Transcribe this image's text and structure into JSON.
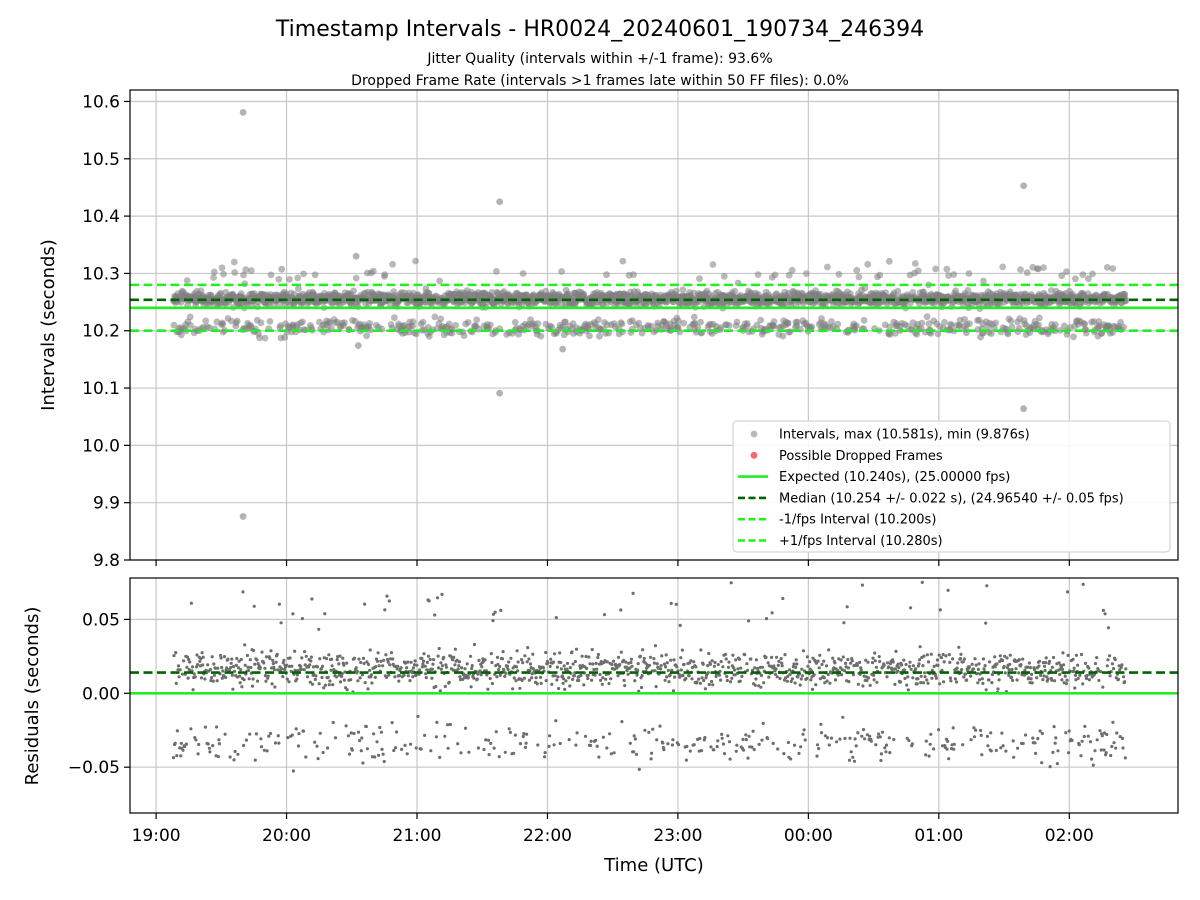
{
  "chart_data": [
    {
      "type": "scatter",
      "title": "Timestamp Intervals - HR0024_20240601_190734_246394",
      "subtitle_lines": [
        "Jitter Quality (intervals within +/-1 frame): 93.6%",
        "Dropped Frame Rate (intervals >1 frames late within 50 FF files): 0.0%"
      ],
      "xlabel": "",
      "ylabel": "Intervals (seconds)",
      "ylim": [
        9.8,
        10.62
      ],
      "xlim": [
        "2024-06-01T18:48",
        "2024-06-02T02:50"
      ],
      "yticks": [
        "9.8",
        "9.9",
        "10.0",
        "10.1",
        "10.2",
        "10.3",
        "10.4",
        "10.5",
        "10.6"
      ],
      "grid": true,
      "legend_position": "lower right",
      "series": [
        {
          "name": "Intervals, max (10.581s), min (9.876s)",
          "color": "#808080",
          "marker": "circle",
          "max": 10.581,
          "min": 9.876,
          "median": 10.254,
          "time_range": [
            "2024-06-01T19:08",
            "2024-06-02T02:26"
          ],
          "point_count_approx": 2570,
          "bands": [
            {
              "center": 10.256,
              "spread": 0.006,
              "fraction": 0.75
            },
            {
              "center": 10.206,
              "spread": 0.007,
              "fraction": 0.22
            },
            {
              "center": 10.3,
              "spread": 0.009,
              "fraction": 0.03
            }
          ],
          "notable_points": [
            {
              "time": "2024-06-01T19:40",
              "value": 10.581
            },
            {
              "time": "2024-06-01T19:40",
              "value": 9.876
            },
            {
              "time": "2024-06-01T21:38",
              "value": 10.425
            },
            {
              "time": "2024-06-01T21:38",
              "value": 10.091
            },
            {
              "time": "2024-06-02T01:39",
              "value": 10.453
            },
            {
              "time": "2024-06-02T01:39",
              "value": 10.064
            },
            {
              "time": "2024-06-01T20:32",
              "value": 10.33
            },
            {
              "time": "2024-06-01T22:07",
              "value": 10.168
            },
            {
              "time": "2024-06-01T20:33",
              "value": 10.174
            }
          ]
        },
        {
          "name": "Possible Dropped Frames",
          "color": "#f05a5a",
          "marker": "circle",
          "points": []
        },
        {
          "name": "Expected (10.240s), (25.00000 fps)",
          "color": "#22ee22",
          "style": "solid",
          "value": 10.24
        },
        {
          "name": "Median (10.254 +/- 0.022 s), (24.96540 +/- 0.05 fps)",
          "color": "#006400",
          "style": "dashed",
          "value": 10.254
        },
        {
          "name": "-1/fps Interval (10.200s)",
          "color": "#22ee22",
          "style": "dashed",
          "value": 10.2
        },
        {
          "name": "+1/fps Interval (10.280s)",
          "color": "#22ee22",
          "style": "dashed",
          "value": 10.28
        }
      ]
    },
    {
      "type": "scatter",
      "xlabel": "Time (UTC)",
      "ylabel": "Residuals (seconds)",
      "ylim": [
        -0.081,
        0.078
      ],
      "xlim": [
        "2024-06-01T18:48",
        "2024-06-02T02:50"
      ],
      "xticks": [
        "19:00",
        "20:00",
        "21:00",
        "22:00",
        "23:00",
        "00:00",
        "01:00",
        "02:00"
      ],
      "yticks": [
        "−0.05",
        "0.00",
        "0.05"
      ],
      "grid": true,
      "series": [
        {
          "name": "Residuals",
          "color": "#6e6e6e",
          "marker": "point",
          "bands": [
            {
              "center": 0.016,
              "spread": 0.006,
              "fraction": 0.75
            },
            {
              "center": -0.034,
              "spread": 0.007,
              "fraction": 0.22
            },
            {
              "center": 0.06,
              "spread": 0.009,
              "fraction": 0.03
            }
          ]
        },
        {
          "name": "Zero",
          "color": "#22ee22",
          "style": "solid",
          "value": 0.0
        },
        {
          "name": "Median offset",
          "color": "#006400",
          "style": "dashed",
          "value": 0.014
        }
      ]
    }
  ]
}
